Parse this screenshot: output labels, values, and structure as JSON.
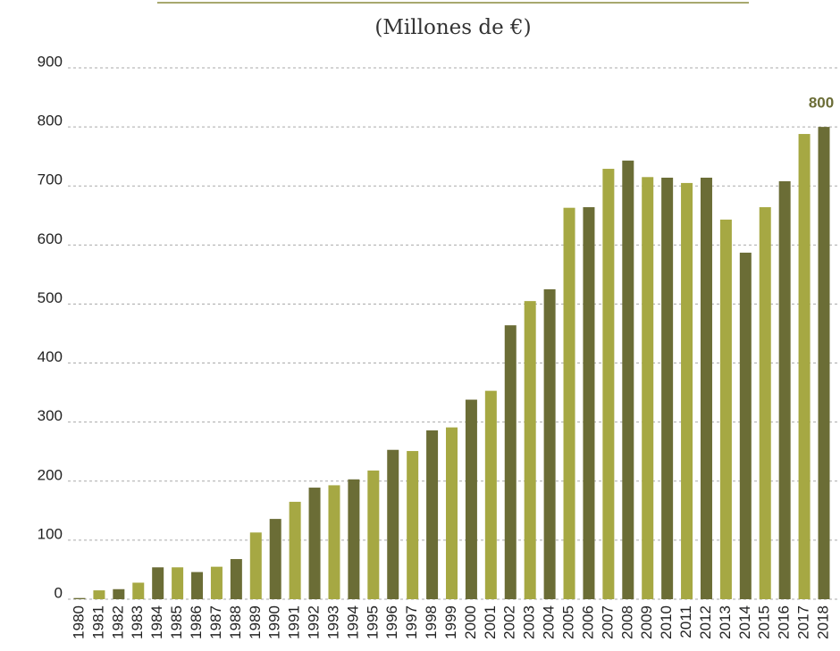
{
  "chart_data": {
    "type": "bar",
    "title": "(Millones de €)",
    "categories": [
      "1980",
      "1981",
      "1982",
      "1983",
      "1984",
      "1985",
      "1986",
      "1987",
      "1988",
      "1989",
      "1990",
      "1991",
      "1992",
      "1993",
      "1994",
      "1995",
      "1996",
      "1997",
      "1998",
      "1999",
      "2000",
      "2001",
      "2002",
      "2003",
      "2004",
      "2005",
      "2006",
      "2007",
      "2008",
      "2009",
      "2010",
      "2011",
      "2012",
      "2013",
      "2014",
      "2015",
      "2016",
      "2017",
      "2018"
    ],
    "values": [
      2,
      15,
      17,
      28,
      54,
      54,
      46,
      55,
      68,
      113,
      136,
      165,
      189,
      193,
      203,
      218,
      253,
      251,
      286,
      291,
      338,
      353,
      464,
      505,
      525,
      663,
      664,
      729,
      743,
      715,
      714,
      705,
      714,
      643,
      587,
      664,
      708,
      788,
      800
    ],
    "colors": [
      "#6b6d36",
      "#a6a843"
    ],
    "ylim": [
      0,
      900
    ],
    "yticks": [
      0,
      100,
      200,
      300,
      400,
      500,
      600,
      700,
      800,
      900
    ],
    "grid": true
  }
}
